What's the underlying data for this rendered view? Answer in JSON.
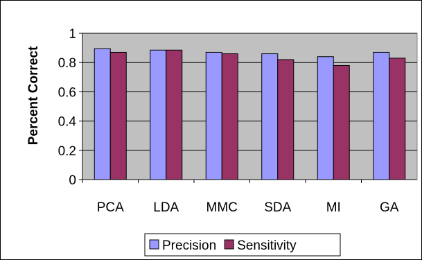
{
  "chart_data": {
    "type": "bar",
    "title": "",
    "xlabel": "",
    "ylabel": "Percent Correct",
    "ylim": [
      0,
      1
    ],
    "yticks": [
      0,
      0.2,
      0.4,
      0.6,
      0.8,
      1
    ],
    "ytick_labels": [
      "0",
      "0.2",
      "0.4",
      "0.6",
      "0.8",
      "1"
    ],
    "grid": true,
    "legend_position": "bottom",
    "plot_background": "#c0c0c0",
    "categories": [
      "PCA",
      "LDA",
      "MMC",
      "SDA",
      "MI",
      "GA"
    ],
    "series": [
      {
        "name": "Precision",
        "color": "#9999ff",
        "values": [
          0.895,
          0.885,
          0.87,
          0.86,
          0.84,
          0.87
        ]
      },
      {
        "name": "Sensitivity",
        "color": "#993366",
        "values": [
          0.87,
          0.885,
          0.86,
          0.82,
          0.78,
          0.83
        ]
      }
    ]
  }
}
